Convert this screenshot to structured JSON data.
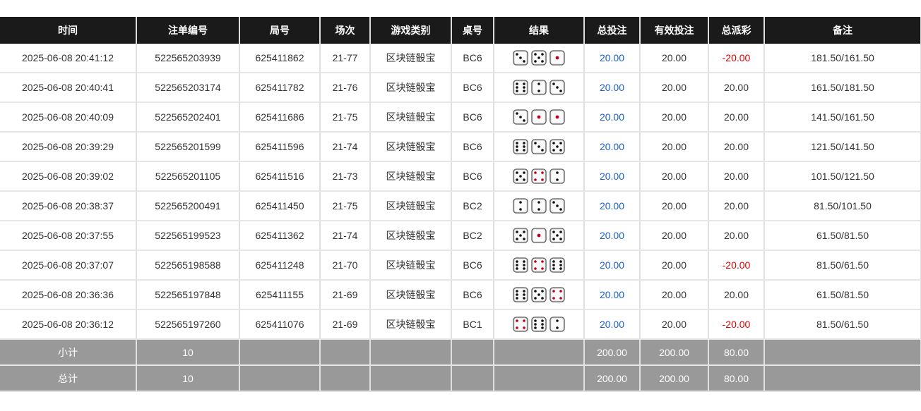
{
  "headers": [
    "时间",
    "注单编号",
    "局号",
    "场次",
    "游戏类别",
    "桌号",
    "结果",
    "总投注",
    "有效投注",
    "总派彩",
    "备注"
  ],
  "rows": [
    {
      "time": "2025-06-08 20:41:12",
      "bet_id": "522565203939",
      "round": "625411862",
      "session": "21-77",
      "game": "区块链骰宝",
      "table": "BC6",
      "dice": [
        3,
        5,
        1
      ],
      "bet": "20.00",
      "valid": "20.00",
      "payout": "-20.00",
      "note": "181.50/161.50"
    },
    {
      "time": "2025-06-08 20:40:41",
      "bet_id": "522565203174",
      "round": "625411782",
      "session": "21-76",
      "game": "区块链骰宝",
      "table": "BC6",
      "dice": [
        6,
        2,
        3
      ],
      "bet": "20.00",
      "valid": "20.00",
      "payout": "20.00",
      "note": "161.50/181.50"
    },
    {
      "time": "2025-06-08 20:40:09",
      "bet_id": "522565202401",
      "round": "625411686",
      "session": "21-75",
      "game": "区块链骰宝",
      "table": "BC6",
      "dice": [
        3,
        1,
        1
      ],
      "bet": "20.00",
      "valid": "20.00",
      "payout": "20.00",
      "note": "141.50/161.50"
    },
    {
      "time": "2025-06-08 20:39:29",
      "bet_id": "522565201599",
      "round": "625411596",
      "session": "21-74",
      "game": "区块链骰宝",
      "table": "BC6",
      "dice": [
        6,
        3,
        5
      ],
      "bet": "20.00",
      "valid": "20.00",
      "payout": "20.00",
      "note": "121.50/141.50"
    },
    {
      "time": "2025-06-08 20:39:02",
      "bet_id": "522565201105",
      "round": "625411516",
      "session": "21-73",
      "game": "区块链骰宝",
      "table": "BC6",
      "dice": [
        5,
        4,
        2
      ],
      "bet": "20.00",
      "valid": "20.00",
      "payout": "20.00",
      "note": "101.50/121.50"
    },
    {
      "time": "2025-06-08 20:38:37",
      "bet_id": "522565200491",
      "round": "625411450",
      "session": "21-75",
      "game": "区块链骰宝",
      "table": "BC2",
      "dice": [
        2,
        2,
        3
      ],
      "bet": "20.00",
      "valid": "20.00",
      "payout": "20.00",
      "note": "81.50/101.50"
    },
    {
      "time": "2025-06-08 20:37:55",
      "bet_id": "522565199523",
      "round": "625411362",
      "session": "21-74",
      "game": "区块链骰宝",
      "table": "BC2",
      "dice": [
        5,
        1,
        5
      ],
      "bet": "20.00",
      "valid": "20.00",
      "payout": "20.00",
      "note": "61.50/81.50"
    },
    {
      "time": "2025-06-08 20:37:07",
      "bet_id": "522565198588",
      "round": "625411248",
      "session": "21-70",
      "game": "区块链骰宝",
      "table": "BC6",
      "dice": [
        6,
        4,
        6
      ],
      "bet": "20.00",
      "valid": "20.00",
      "payout": "-20.00",
      "note": "81.50/61.50"
    },
    {
      "time": "2025-06-08 20:36:36",
      "bet_id": "522565197848",
      "round": "625411155",
      "session": "21-69",
      "game": "区块链骰宝",
      "table": "BC6",
      "dice": [
        6,
        5,
        4
      ],
      "bet": "20.00",
      "valid": "20.00",
      "payout": "20.00",
      "note": "61.50/81.50"
    },
    {
      "time": "2025-06-08 20:36:12",
      "bet_id": "522565197260",
      "round": "625411076",
      "session": "21-69",
      "game": "区块链骰宝",
      "table": "BC1",
      "dice": [
        4,
        6,
        2
      ],
      "bet": "20.00",
      "valid": "20.00",
      "payout": "-20.00",
      "note": "81.50/61.50"
    }
  ],
  "subtotal": {
    "label": "小计",
    "count": "10",
    "bet": "200.00",
    "valid": "200.00",
    "payout": "80.00"
  },
  "total": {
    "label": "总计",
    "count": "10",
    "bet": "200.00",
    "valid": "200.00",
    "payout": "80.00"
  },
  "colors": {
    "header_bg": "#1a1a1a",
    "summary_bg": "#999999",
    "bet_blue": "#1a5fd0",
    "loss_red": "#e00000",
    "pip_red": "#c00020"
  }
}
